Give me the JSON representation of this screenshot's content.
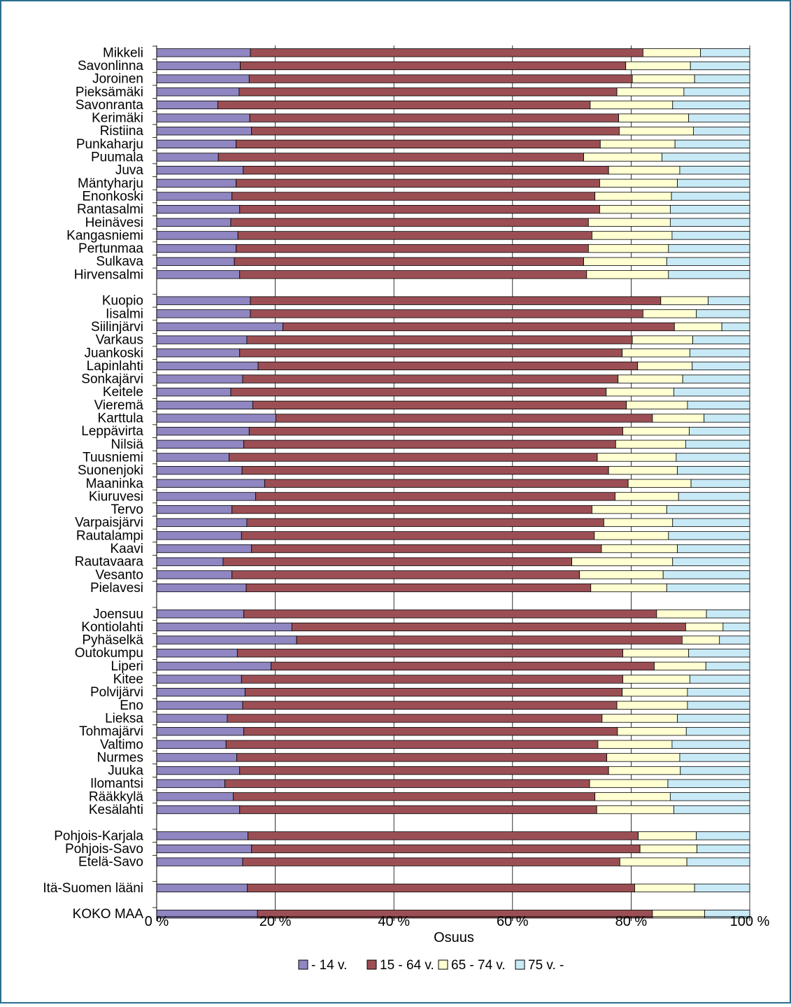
{
  "chart_data": {
    "type": "bar",
    "orientation": "horizontal",
    "stacked": "percent",
    "xlabel": "Osuus",
    "xlim": [
      0,
      100
    ],
    "x_ticks": [
      "0 %",
      "20 %",
      "40 %",
      "60 %",
      "80 %",
      "100 %"
    ],
    "grid": true,
    "legend_position": "bottom",
    "colors": [
      "#8f86c2",
      "#9b4f54",
      "#ffffd2",
      "#c8eaf6"
    ],
    "series_names": [
      "- 14 v.",
      "15 - 64 v.",
      "65 - 74 v.",
      "75 v. -"
    ],
    "groups": [
      {
        "categories": [
          "Mikkeli",
          "Savonlinna",
          "Joroinen",
          "Pieksämäki",
          "Savonranta",
          "Kerimäki",
          "Ristiina",
          "Punkaharju",
          "Puumala",
          "Juva",
          "Mäntyharju",
          "Enonkoski",
          "Rantasalmi",
          "Heinävesi",
          "Kangasniemi",
          "Pertunmaa",
          "Sulkava",
          "Hirvensalmi"
        ],
        "values": [
          [
            15.8,
            66.2,
            9.7,
            8.3
          ],
          [
            14.1,
            65.0,
            10.9,
            10.0
          ],
          [
            15.6,
            64.6,
            10.5,
            9.3
          ],
          [
            13.9,
            63.7,
            11.3,
            11.1
          ],
          [
            10.3,
            62.8,
            13.9,
            13.0
          ],
          [
            15.7,
            62.2,
            11.8,
            10.3
          ],
          [
            16.0,
            62.0,
            12.5,
            9.5
          ],
          [
            13.4,
            61.4,
            12.6,
            12.6
          ],
          [
            10.4,
            61.6,
            13.2,
            14.8
          ],
          [
            14.6,
            61.6,
            12.0,
            11.8
          ],
          [
            13.4,
            61.3,
            13.1,
            12.2
          ],
          [
            12.7,
            61.2,
            12.9,
            13.2
          ],
          [
            14.0,
            60.7,
            11.9,
            13.4
          ],
          [
            12.5,
            60.3,
            13.8,
            13.4
          ],
          [
            13.7,
            59.7,
            13.5,
            13.1
          ],
          [
            13.4,
            59.4,
            13.5,
            13.7
          ],
          [
            13.1,
            58.9,
            14.0,
            14.0
          ],
          [
            14.0,
            58.5,
            13.8,
            13.7
          ]
        ]
      },
      {
        "categories": [
          "Kuopio",
          "Iisalmi",
          "Siilinjärvi",
          "Varkaus",
          "Juankoski",
          "Lapinlahti",
          "Sonkajärvi",
          "Keitele",
          "Vieremä",
          "Karttula",
          "Leppävirta",
          "Nilsiä",
          "Tuusniemi",
          "Suonenjoki",
          "Maaninka",
          "Kiuruvesi",
          "Tervo",
          "Varpaisjärvi",
          "Rautalampi",
          "Kaavi",
          "Rautavaara",
          "Vesanto",
          "Pielavesi"
        ],
        "values": [
          [
            15.8,
            69.2,
            8.0,
            7.0
          ],
          [
            15.8,
            66.2,
            9.0,
            9.0
          ],
          [
            21.3,
            66.0,
            8.0,
            4.7
          ],
          [
            15.2,
            65.0,
            10.2,
            9.6
          ],
          [
            14.0,
            64.5,
            11.4,
            10.1
          ],
          [
            17.1,
            64.0,
            9.2,
            9.7
          ],
          [
            14.5,
            63.3,
            10.9,
            11.3
          ],
          [
            12.5,
            63.3,
            11.4,
            12.8
          ],
          [
            16.2,
            63.0,
            10.3,
            10.5
          ],
          [
            20.1,
            63.5,
            8.7,
            7.7
          ],
          [
            15.6,
            63.0,
            11.2,
            10.2
          ],
          [
            14.7,
            62.7,
            11.8,
            10.8
          ],
          [
            12.2,
            62.1,
            13.3,
            12.4
          ],
          [
            14.4,
            61.8,
            11.6,
            12.2
          ],
          [
            18.2,
            61.3,
            10.6,
            9.9
          ],
          [
            16.7,
            60.6,
            10.7,
            12.0
          ],
          [
            12.7,
            60.7,
            12.6,
            14.0
          ],
          [
            15.2,
            60.2,
            11.6,
            13.0
          ],
          [
            14.3,
            59.5,
            12.5,
            13.7
          ],
          [
            16.0,
            59.0,
            12.8,
            12.2
          ],
          [
            11.2,
            58.8,
            17.0,
            13.0
          ],
          [
            12.7,
            58.6,
            14.1,
            14.6
          ],
          [
            15.1,
            58.1,
            12.8,
            14.0
          ]
        ]
      },
      {
        "categories": [
          "Joensuu",
          "Kontiolahti",
          "Pyhäselkä",
          "Outokumpu",
          "Liperi",
          "Kitee",
          "Polvijärvi",
          "Eno",
          "Lieksa",
          "Tohmajärvi",
          "Valtimo",
          "Nurmes",
          "Juuka",
          "Ilomantsi",
          "Rääkkylä",
          "Kesälahti"
        ],
        "values": [
          [
            14.7,
            69.6,
            8.4,
            7.3
          ],
          [
            22.8,
            66.4,
            6.3,
            4.5
          ],
          [
            23.6,
            65.0,
            6.3,
            5.1
          ],
          [
            13.6,
            65.0,
            11.1,
            10.3
          ],
          [
            19.3,
            64.6,
            8.7,
            7.4
          ],
          [
            14.3,
            64.3,
            11.3,
            10.1
          ],
          [
            14.9,
            63.6,
            11.0,
            10.5
          ],
          [
            14.5,
            63.1,
            11.9,
            10.5
          ],
          [
            11.9,
            63.2,
            12.7,
            12.2
          ],
          [
            14.7,
            63.0,
            11.6,
            10.7
          ],
          [
            11.7,
            62.7,
            12.5,
            13.1
          ],
          [
            13.5,
            62.4,
            12.3,
            11.8
          ],
          [
            14.0,
            62.2,
            12.1,
            11.7
          ],
          [
            11.5,
            61.5,
            13.2,
            13.8
          ],
          [
            12.9,
            61.0,
            12.7,
            13.4
          ],
          [
            14.0,
            60.2,
            13.0,
            12.8
          ]
        ]
      },
      {
        "categories": [
          "Pohjois-Karjala",
          "Pohjois-Savo",
          "Etelä-Savo"
        ],
        "values": [
          [
            15.4,
            65.8,
            9.8,
            9.0
          ],
          [
            16.0,
            65.5,
            9.6,
            8.9
          ],
          [
            14.5,
            63.6,
            11.3,
            10.6
          ]
        ]
      },
      {
        "categories": [
          "Itä-Suomen lääni"
        ],
        "values": [
          [
            15.3,
            65.3,
            10.1,
            9.3
          ]
        ]
      },
      {
        "categories": [
          "KOKO MAA"
        ],
        "values": [
          [
            17.0,
            66.6,
            8.8,
            7.6
          ]
        ]
      }
    ]
  }
}
